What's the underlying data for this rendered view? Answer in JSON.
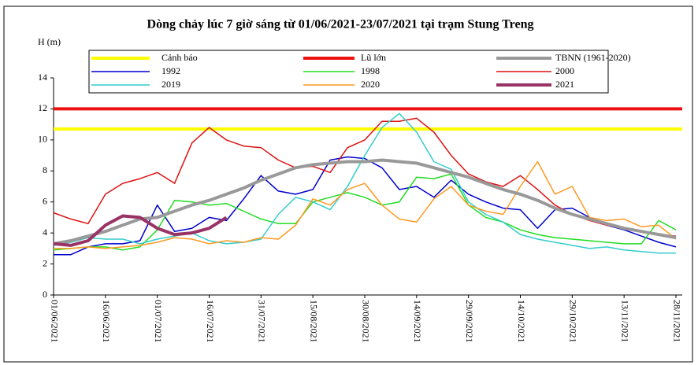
{
  "chart_data": {
    "type": "line",
    "title": "Dòng chảy lúc 7 giờ sáng từ 01/06/2021-23/07/2021 tại trạm Stung Treng",
    "y_label": "H (m)",
    "ylim": [
      0,
      14
    ],
    "yticks": [
      0,
      2,
      4,
      6,
      8,
      10,
      12,
      14
    ],
    "categories": [
      "01/06/2021",
      null,
      null,
      "16/06/2021",
      null,
      null,
      "01/07/2021",
      null,
      null,
      "16/07/2021",
      null,
      null,
      "31/07/2021",
      null,
      null,
      "15/08/2021",
      null,
      null,
      "30/08/2021",
      null,
      null,
      "14/09/2021",
      null,
      null,
      "29/09/2021",
      null,
      null,
      "14/10/2021",
      null,
      null,
      "29/10/2021",
      null,
      null,
      "13/11/2021",
      null,
      null,
      "28/11/2021"
    ],
    "hlines": [
      {
        "name": "Cảnh báo",
        "color": "#ffff00",
        "value": 10.7
      },
      {
        "name": "Lũ lớn",
        "color": "#ee1111",
        "value": 12
      }
    ],
    "series": [
      {
        "name": "TBNN (1961-2020)",
        "color": "#999999",
        "line_width": 4,
        "values": [
          3.3,
          3.5,
          3.8,
          4.1,
          4.5,
          4.9,
          5.0,
          5.4,
          5.8,
          6.1,
          6.5,
          6.9,
          7.4,
          7.8,
          8.2,
          8.4,
          8.5,
          8.6,
          8.6,
          8.7,
          8.6,
          8.5,
          8.2,
          7.9,
          7.6,
          7.2,
          6.8,
          6.5,
          6.1,
          5.6,
          5.2,
          4.9,
          4.6,
          4.3,
          4.1,
          3.9,
          3.7
        ]
      },
      {
        "name": "1992",
        "color": "#0000cc",
        "line_width": 1.5,
        "values": [
          2.6,
          2.6,
          3.1,
          3.3,
          3.3,
          3.5,
          5.8,
          4.1,
          4.3,
          5.0,
          4.8,
          6.2,
          7.7,
          6.7,
          6.5,
          6.8,
          8.7,
          8.9,
          8.8,
          8.2,
          6.8,
          7.0,
          6.3,
          7.4,
          6.5,
          6.0,
          5.6,
          5.5,
          4.3,
          5.5,
          5.6,
          5.0,
          4.5,
          4.2,
          3.8,
          3.4,
          3.1
        ]
      },
      {
        "name": "1998",
        "color": "#22dd22",
        "line_width": 1.5,
        "values": [
          2.9,
          3.0,
          3.1,
          3.1,
          2.9,
          3.1,
          4.2,
          6.1,
          6.0,
          5.8,
          5.9,
          5.4,
          4.9,
          4.6,
          4.6,
          6.0,
          6.3,
          6.6,
          6.3,
          5.8,
          6.0,
          7.6,
          7.5,
          7.8,
          5.8,
          5.0,
          4.7,
          4.2,
          3.9,
          3.7,
          3.6,
          3.5,
          3.4,
          3.3,
          3.3,
          4.8,
          4.2
        ]
      },
      {
        "name": "2000",
        "color": "#dd1111",
        "line_width": 1.5,
        "values": [
          5.3,
          4.9,
          4.6,
          6.5,
          7.2,
          7.5,
          7.9,
          7.2,
          9.8,
          10.8,
          10.0,
          9.6,
          9.5,
          8.7,
          8.2,
          8.3,
          7.9,
          9.5,
          10.0,
          11.2,
          11.2,
          11.4,
          10.5,
          9.0,
          7.8,
          7.3,
          7.0,
          7.7,
          6.8,
          5.8,
          5.2,
          4.8,
          4.5,
          4.3,
          4.1,
          3.9,
          3.8
        ]
      },
      {
        "name": "2019",
        "color": "#33cccc",
        "line_width": 1.5,
        "values": [
          3.2,
          3.4,
          3.7,
          3.6,
          3.6,
          3.3,
          3.6,
          3.8,
          4.0,
          3.5,
          3.3,
          3.4,
          3.6,
          5.2,
          6.3,
          6.0,
          5.5,
          7.0,
          9.0,
          10.8,
          11.7,
          10.5,
          8.6,
          8.1,
          6.0,
          5.2,
          4.7,
          3.9,
          3.6,
          3.4,
          3.2,
          3.0,
          3.1,
          2.9,
          2.8,
          2.7,
          2.7
        ]
      },
      {
        "name": "2020",
        "color": "#ff9922",
        "line_width": 1.5,
        "values": [
          3.0,
          3.0,
          3.1,
          3.0,
          3.1,
          3.2,
          3.4,
          3.7,
          3.6,
          3.3,
          3.5,
          3.4,
          3.7,
          3.6,
          4.5,
          6.2,
          5.8,
          6.8,
          7.2,
          5.8,
          4.9,
          4.7,
          6.2,
          7.0,
          5.8,
          5.4,
          5.2,
          7.0,
          8.6,
          6.5,
          7.0,
          5.0,
          4.8,
          4.9,
          4.4,
          4.5,
          3.6
        ]
      },
      {
        "name": "2021",
        "color": "#993366",
        "line_width": 4,
        "values": [
          3.3,
          3.2,
          3.5,
          4.5,
          5.1,
          5.0,
          4.3,
          3.9,
          4.0,
          4.3,
          5.0,
          null,
          null,
          null,
          null,
          null,
          null,
          null,
          null,
          null,
          null,
          null,
          null,
          null,
          null,
          null,
          null,
          null,
          null,
          null,
          null,
          null,
          null,
          null,
          null,
          null,
          null
        ]
      }
    ]
  }
}
